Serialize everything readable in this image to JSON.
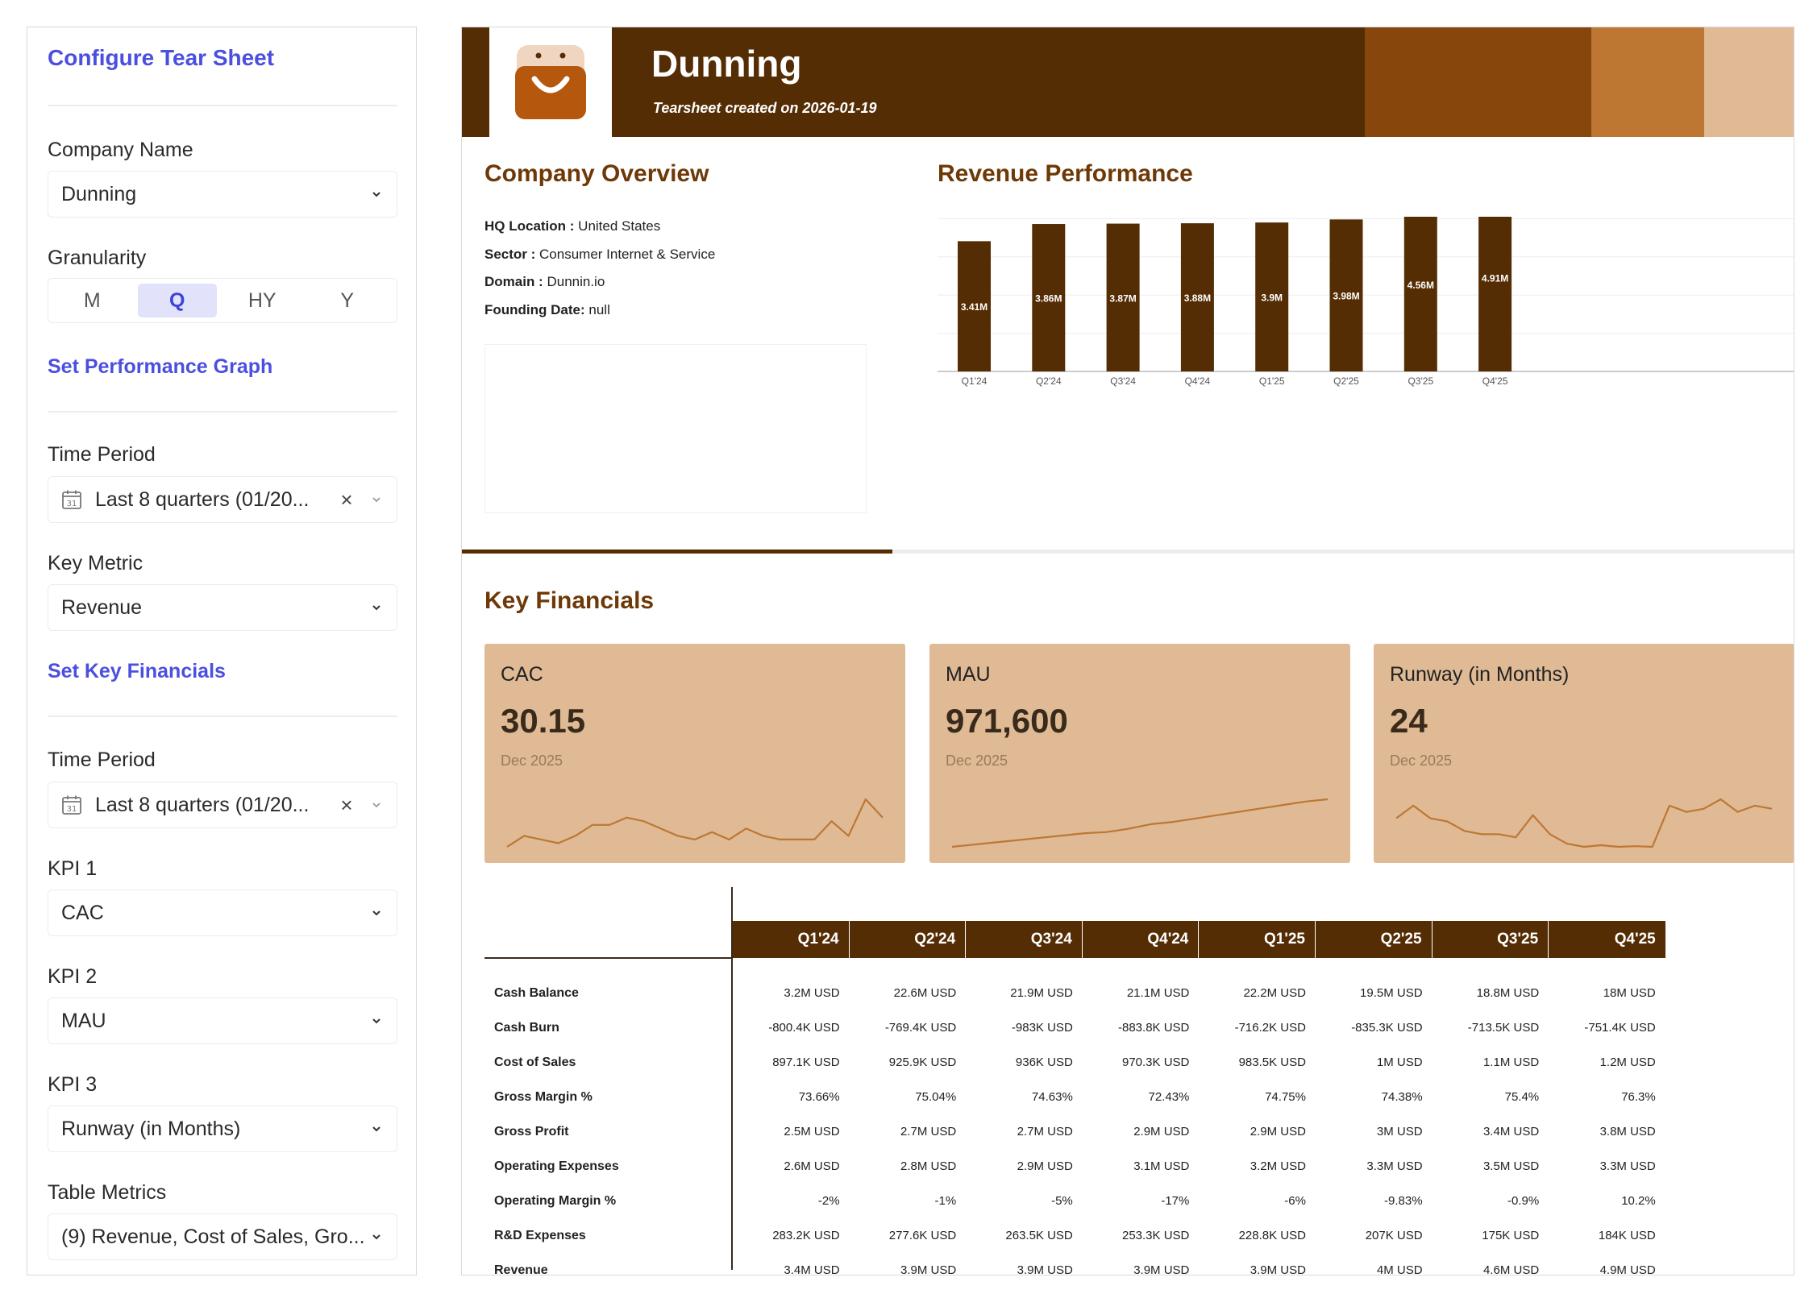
{
  "config": {
    "title": "Configure Tear Sheet",
    "company_label": "Company Name",
    "company_value": "Dunning",
    "granularity_label": "Granularity",
    "granularity_options": [
      "M",
      "Q",
      "HY",
      "Y"
    ],
    "granularity_selected": "Q",
    "perf_section": "Set Performance Graph",
    "perf_time_label": "Time Period",
    "perf_time_value": "Last 8 quarters (01/20...",
    "key_metric_label": "Key Metric",
    "key_metric_value": "Revenue",
    "fin_section": "Set Key Financials",
    "fin_time_label": "Time Period",
    "fin_time_value": "Last 8 quarters (01/20...",
    "kpi1_label": "KPI 1",
    "kpi1_value": "CAC",
    "kpi2_label": "KPI 2",
    "kpi2_value": "MAU",
    "kpi3_label": "KPI 3",
    "kpi3_value": "Runway (in Months)",
    "table_metrics_label": "Table Metrics",
    "table_metrics_value": "(9) Revenue, Cost of Sales, Gro..."
  },
  "report": {
    "company": "Dunning",
    "created": "Tearsheet created on 2026-01-19",
    "overview_heading": "Company Overview",
    "overview": [
      {
        "k": "HQ Location :",
        "v": " United States"
      },
      {
        "k": "Sector :",
        "v": " Consumer Internet & Service"
      },
      {
        "k": "Domain :",
        "v": " Dunnin.io"
      },
      {
        "k": "Founding Date:",
        "v": " null"
      }
    ],
    "revenue_heading": "Revenue Performance",
    "progress_fraction": 0.323,
    "financials_heading": "Key Financials",
    "colors": {
      "dark": "#552d04",
      "mid": "#87460c",
      "accent": "#be7733",
      "light": "#dfba95"
    },
    "kpis": [
      {
        "name": "CAC",
        "value": "30.15",
        "date": "Dec 2025",
        "spark": [
          3,
          6,
          5,
          4,
          6,
          9,
          9,
          11,
          10,
          8,
          6,
          5,
          7,
          5,
          8,
          6,
          5,
          5,
          5,
          10,
          6,
          16,
          11
        ]
      },
      {
        "name": "MAU",
        "value": "971,600",
        "date": "Dec 2025",
        "spark": [
          2,
          3,
          4,
          5,
          6,
          7,
          8,
          8.5,
          10,
          12,
          13,
          14.5,
          16,
          17.5,
          19,
          20.5,
          22,
          23
        ]
      },
      {
        "name": "Runway (in Months)",
        "value": "24",
        "date": "Dec 2025",
        "spark": [
          10,
          14,
          10,
          9,
          6,
          5,
          5,
          4,
          11,
          5,
          2,
          1,
          1.5,
          1,
          1.2,
          1,
          14,
          12,
          13,
          16,
          12,
          14,
          13
        ]
      }
    ],
    "table": {
      "columns": [
        "Q1'24",
        "Q2'24",
        "Q3'24",
        "Q4'24",
        "Q1'25",
        "Q2'25",
        "Q3'25",
        "Q4'25"
      ],
      "rows": [
        {
          "label": "Cash Balance",
          "cells": [
            "3.2M USD",
            "22.6M USD",
            "21.9M USD",
            "21.1M USD",
            "22.2M USD",
            "19.5M USD",
            "18.8M USD",
            "18M USD"
          ]
        },
        {
          "label": "Cash Burn",
          "cells": [
            "-800.4K USD",
            "-769.4K USD",
            "-983K USD",
            "-883.8K USD",
            "-716.2K USD",
            "-835.3K USD",
            "-713.5K USD",
            "-751.4K USD"
          ]
        },
        {
          "label": "Cost of Sales",
          "cells": [
            "897.1K USD",
            "925.9K USD",
            "936K USD",
            "970.3K USD",
            "983.5K USD",
            "1M USD",
            "1.1M USD",
            "1.2M USD"
          ]
        },
        {
          "label": "Gross Margin %",
          "cells": [
            "73.66%",
            "75.04%",
            "74.63%",
            "72.43%",
            "74.75%",
            "74.38%",
            "75.4%",
            "76.3%"
          ]
        },
        {
          "label": "Gross Profit",
          "cells": [
            "2.5M USD",
            "2.7M USD",
            "2.7M USD",
            "2.9M USD",
            "2.9M USD",
            "3M USD",
            "3.4M USD",
            "3.8M USD"
          ]
        },
        {
          "label": "Operating Expenses",
          "cells": [
            "2.6M USD",
            "2.8M USD",
            "2.9M USD",
            "3.1M USD",
            "3.2M USD",
            "3.3M USD",
            "3.5M USD",
            "3.3M USD"
          ]
        },
        {
          "label": "Operating Margin %",
          "cells": [
            "-2%",
            "-1%",
            "-5%",
            "-17%",
            "-6%",
            "-9.83%",
            "-0.9%",
            "10.2%"
          ]
        },
        {
          "label": "R&D Expenses",
          "cells": [
            "283.2K USD",
            "277.6K USD",
            "263.5K USD",
            "253.3K USD",
            "228.8K USD",
            "207K USD",
            "175K USD",
            "184K USD"
          ]
        },
        {
          "label": "Revenue",
          "cells": [
            "3.4M USD",
            "3.9M USD",
            "3.9M USD",
            "3.9M USD",
            "3.9M USD",
            "4M USD",
            "4.6M USD",
            "4.9M USD"
          ]
        }
      ]
    }
  },
  "chart_data": {
    "type": "bar",
    "categories": [
      "Q1'24",
      "Q2'24",
      "Q3'24",
      "Q4'24",
      "Q1'25",
      "Q2'25",
      "Q3'25",
      "Q4'25"
    ],
    "values": [
      3.41,
      3.86,
      3.87,
      3.88,
      3.9,
      3.98,
      4.56,
      4.91
    ],
    "labels": [
      "3.41M",
      "3.86M",
      "3.87M",
      "3.88M",
      "3.9M",
      "3.98M",
      "4.56M",
      "4.91M"
    ],
    "title": "Revenue Performance",
    "xlabel": "",
    "ylabel": "",
    "ylim": [
      0,
      5.0
    ],
    "grid": true
  }
}
